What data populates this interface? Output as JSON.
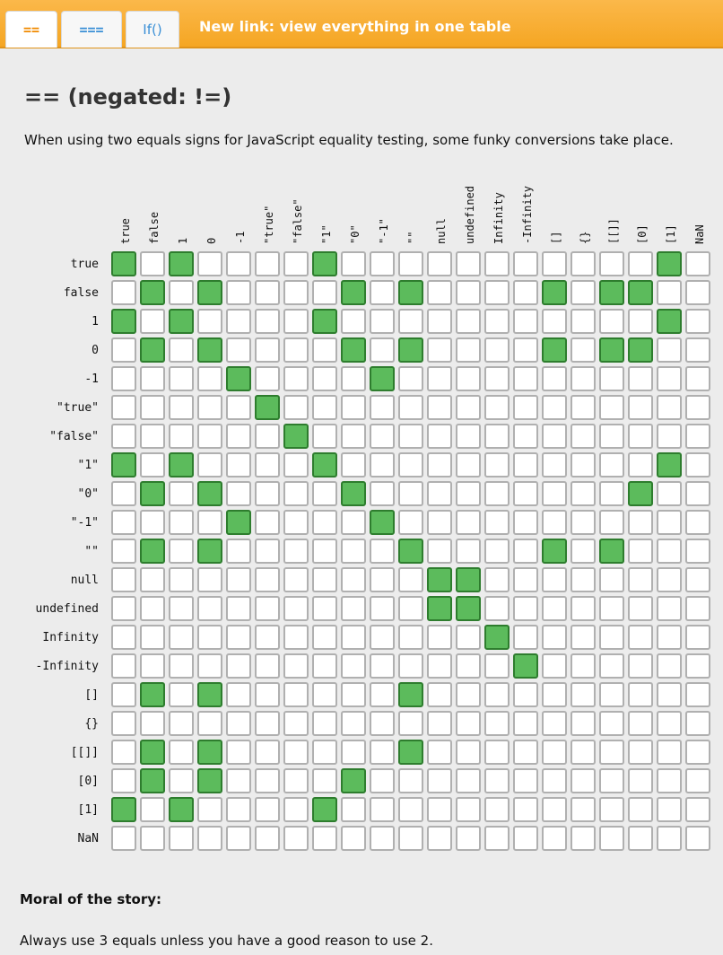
{
  "tabs": [
    {
      "label": "=="
    },
    {
      "label": "==="
    },
    {
      "label": "If()"
    }
  ],
  "new_link": "New link: view everything in one table",
  "title": "== (negated: !=)",
  "description": "When using two equals signs for JavaScript equality testing, some funky conversions take place.",
  "colors": {
    "true_cell": "#5cbb5c",
    "false_cell": "#ffffff",
    "header_bar": "#f5a623"
  },
  "labels": [
    "true",
    "false",
    "1",
    "0",
    "-1",
    "\"true\"",
    "\"false\"",
    "\"1\"",
    "\"0\"",
    "\"-1\"",
    "\"\"",
    "null",
    "undefined",
    "Infinity",
    "-Infinity",
    "[]",
    "{}",
    "[[]]",
    "[0]",
    "[1]",
    "NaN"
  ],
  "matrix": [
    [
      1,
      0,
      1,
      0,
      0,
      0,
      0,
      1,
      0,
      0,
      0,
      0,
      0,
      0,
      0,
      0,
      0,
      0,
      0,
      1,
      0
    ],
    [
      0,
      1,
      0,
      1,
      0,
      0,
      0,
      0,
      1,
      0,
      1,
      0,
      0,
      0,
      0,
      1,
      0,
      1,
      1,
      0,
      0
    ],
    [
      1,
      0,
      1,
      0,
      0,
      0,
      0,
      1,
      0,
      0,
      0,
      0,
      0,
      0,
      0,
      0,
      0,
      0,
      0,
      1,
      0
    ],
    [
      0,
      1,
      0,
      1,
      0,
      0,
      0,
      0,
      1,
      0,
      1,
      0,
      0,
      0,
      0,
      1,
      0,
      1,
      1,
      0,
      0
    ],
    [
      0,
      0,
      0,
      0,
      1,
      0,
      0,
      0,
      0,
      1,
      0,
      0,
      0,
      0,
      0,
      0,
      0,
      0,
      0,
      0,
      0
    ],
    [
      0,
      0,
      0,
      0,
      0,
      1,
      0,
      0,
      0,
      0,
      0,
      0,
      0,
      0,
      0,
      0,
      0,
      0,
      0,
      0,
      0
    ],
    [
      0,
      0,
      0,
      0,
      0,
      0,
      1,
      0,
      0,
      0,
      0,
      0,
      0,
      0,
      0,
      0,
      0,
      0,
      0,
      0,
      0
    ],
    [
      1,
      0,
      1,
      0,
      0,
      0,
      0,
      1,
      0,
      0,
      0,
      0,
      0,
      0,
      0,
      0,
      0,
      0,
      0,
      1,
      0
    ],
    [
      0,
      1,
      0,
      1,
      0,
      0,
      0,
      0,
      1,
      0,
      0,
      0,
      0,
      0,
      0,
      0,
      0,
      0,
      1,
      0,
      0
    ],
    [
      0,
      0,
      0,
      0,
      1,
      0,
      0,
      0,
      0,
      1,
      0,
      0,
      0,
      0,
      0,
      0,
      0,
      0,
      0,
      0,
      0
    ],
    [
      0,
      1,
      0,
      1,
      0,
      0,
      0,
      0,
      0,
      0,
      1,
      0,
      0,
      0,
      0,
      1,
      0,
      1,
      0,
      0,
      0
    ],
    [
      0,
      0,
      0,
      0,
      0,
      0,
      0,
      0,
      0,
      0,
      0,
      1,
      1,
      0,
      0,
      0,
      0,
      0,
      0,
      0,
      0
    ],
    [
      0,
      0,
      0,
      0,
      0,
      0,
      0,
      0,
      0,
      0,
      0,
      1,
      1,
      0,
      0,
      0,
      0,
      0,
      0,
      0,
      0
    ],
    [
      0,
      0,
      0,
      0,
      0,
      0,
      0,
      0,
      0,
      0,
      0,
      0,
      0,
      1,
      0,
      0,
      0,
      0,
      0,
      0,
      0
    ],
    [
      0,
      0,
      0,
      0,
      0,
      0,
      0,
      0,
      0,
      0,
      0,
      0,
      0,
      0,
      1,
      0,
      0,
      0,
      0,
      0,
      0
    ],
    [
      0,
      1,
      0,
      1,
      0,
      0,
      0,
      0,
      0,
      0,
      1,
      0,
      0,
      0,
      0,
      0,
      0,
      0,
      0,
      0,
      0
    ],
    [
      0,
      0,
      0,
      0,
      0,
      0,
      0,
      0,
      0,
      0,
      0,
      0,
      0,
      0,
      0,
      0,
      0,
      0,
      0,
      0,
      0
    ],
    [
      0,
      1,
      0,
      1,
      0,
      0,
      0,
      0,
      0,
      0,
      1,
      0,
      0,
      0,
      0,
      0,
      0,
      0,
      0,
      0,
      0
    ],
    [
      0,
      1,
      0,
      1,
      0,
      0,
      0,
      0,
      1,
      0,
      0,
      0,
      0,
      0,
      0,
      0,
      0,
      0,
      0,
      0,
      0
    ],
    [
      1,
      0,
      1,
      0,
      0,
      0,
      0,
      1,
      0,
      0,
      0,
      0,
      0,
      0,
      0,
      0,
      0,
      0,
      0,
      0,
      0
    ],
    [
      0,
      0,
      0,
      0,
      0,
      0,
      0,
      0,
      0,
      0,
      0,
      0,
      0,
      0,
      0,
      0,
      0,
      0,
      0,
      0,
      0
    ]
  ],
  "moral": {
    "heading": "Moral of the story:",
    "text": "Always use 3 equals unless you have a good reason to use 2."
  }
}
